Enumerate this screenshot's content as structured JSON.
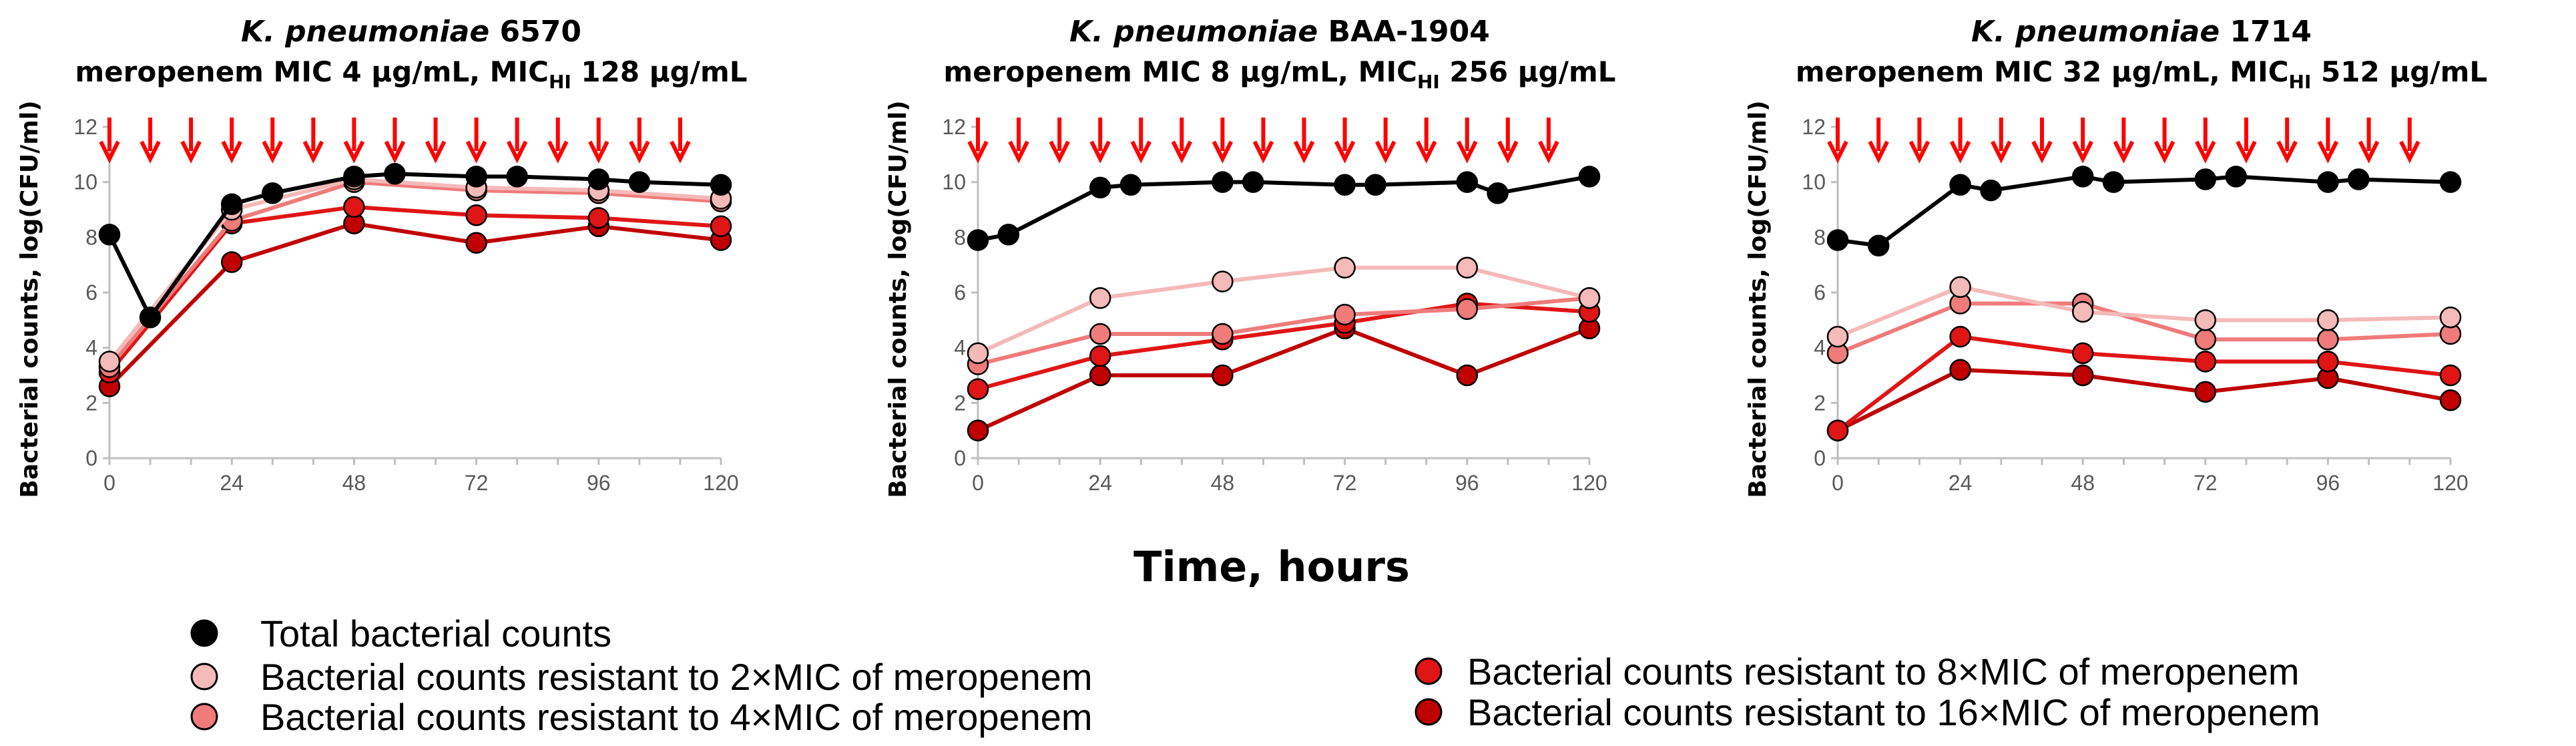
{
  "chart_data": [
    {
      "type": "line",
      "title_italic": "K. pneumoniae",
      "title_strain": "6570",
      "subtitle_prefix": "meropenem MIC 4 µg/mL, MIC",
      "subtitle_sub": "HI",
      "subtitle_suffix": "128 µg/mL",
      "ylabel": "Bacterial counts, log(CFU/ml)",
      "xlim": [
        0,
        120
      ],
      "ylim": [
        0,
        12
      ],
      "xticks": [
        0,
        24,
        48,
        72,
        96,
        120
      ],
      "yticks": [
        0,
        2,
        4,
        6,
        8,
        10,
        12
      ],
      "dose_times": [
        0,
        8,
        16,
        24,
        32,
        40,
        48,
        56,
        64,
        72,
        80,
        88,
        96,
        104,
        112
      ],
      "series": [
        {
          "name": "Total bacterial counts",
          "x": [
            0,
            8,
            24,
            32,
            48,
            56,
            72,
            80,
            96,
            104,
            120
          ],
          "y": [
            8.1,
            5.1,
            9.2,
            9.6,
            10.2,
            10.3,
            10.2,
            10.2,
            10.1,
            10.0,
            9.9
          ]
        },
        {
          "name": "2×MIC",
          "x": [
            0,
            24,
            48,
            72,
            96,
            120
          ],
          "y": [
            3.5,
            9.0,
            10.1,
            9.8,
            9.7,
            9.4
          ]
        },
        {
          "name": "4×MIC",
          "x": [
            0,
            24,
            48,
            72,
            96,
            120
          ],
          "y": [
            3.3,
            8.6,
            10.0,
            9.7,
            9.6,
            9.3
          ]
        },
        {
          "name": "8×MIC",
          "x": [
            0,
            24,
            48,
            72,
            96,
            120
          ],
          "y": [
            3.1,
            8.5,
            9.1,
            8.8,
            8.7,
            8.4
          ]
        },
        {
          "name": "16×MIC",
          "x": [
            0,
            24,
            48,
            72,
            96,
            120
          ],
          "y": [
            2.6,
            7.1,
            8.5,
            7.8,
            8.4,
            7.9
          ]
        }
      ]
    },
    {
      "type": "line",
      "title_italic": "K. pneumoniae",
      "title_strain": "BAA-1904",
      "subtitle_prefix": "meropenem MIC 8 µg/mL, MIC",
      "subtitle_sub": "HI",
      "subtitle_suffix": "256 µg/mL",
      "ylabel": "Bacterial counts, log(CFU/ml)",
      "xlim": [
        0,
        120
      ],
      "ylim": [
        0,
        12
      ],
      "xticks": [
        0,
        24,
        48,
        72,
        96,
        120
      ],
      "yticks": [
        0,
        2,
        4,
        6,
        8,
        10,
        12
      ],
      "dose_times": [
        0,
        8,
        16,
        24,
        32,
        40,
        48,
        56,
        64,
        72,
        80,
        88,
        96,
        104,
        112
      ],
      "series": [
        {
          "name": "Total bacterial counts",
          "x": [
            0,
            6,
            24,
            30,
            48,
            54,
            72,
            78,
            96,
            102,
            120
          ],
          "y": [
            7.9,
            8.1,
            9.8,
            9.9,
            10.0,
            10.0,
            9.9,
            9.9,
            10.0,
            9.6,
            10.2
          ]
        },
        {
          "name": "2×MIC",
          "x": [
            0,
            24,
            48,
            72,
            96,
            120
          ],
          "y": [
            3.8,
            5.8,
            6.4,
            6.9,
            6.9,
            5.8
          ]
        },
        {
          "name": "4×MIC",
          "x": [
            0,
            24,
            48,
            72,
            96,
            120
          ],
          "y": [
            3.4,
            4.5,
            4.5,
            5.2,
            5.4,
            5.8
          ]
        },
        {
          "name": "8×MIC",
          "x": [
            0,
            24,
            48,
            72,
            96,
            120
          ],
          "y": [
            2.5,
            3.7,
            4.3,
            4.9,
            5.6,
            5.3
          ]
        },
        {
          "name": "16×MIC",
          "x": [
            0,
            24,
            48,
            72,
            96,
            120
          ],
          "y": [
            1.0,
            3.0,
            3.0,
            4.7,
            3.0,
            4.7
          ]
        }
      ]
    },
    {
      "type": "line",
      "title_italic": "K. pneumoniae",
      "title_strain": "1714",
      "subtitle_prefix": "meropenem MIC 32 µg/mL, MIC",
      "subtitle_sub": "HI",
      "subtitle_suffix": "512 µg/mL",
      "ylabel": "Bacterial counts, log(CFU/ml)",
      "xlim": [
        0,
        120
      ],
      "ylim": [
        0,
        12
      ],
      "xticks": [
        0,
        24,
        48,
        72,
        96,
        120
      ],
      "yticks": [
        0,
        2,
        4,
        6,
        8,
        10,
        12
      ],
      "dose_times": [
        0,
        8,
        16,
        24,
        32,
        40,
        48,
        56,
        64,
        72,
        80,
        88,
        96,
        104,
        112
      ],
      "series": [
        {
          "name": "Total bacterial counts",
          "x": [
            0,
            8,
            24,
            30,
            48,
            54,
            72,
            78,
            96,
            102,
            120
          ],
          "y": [
            7.9,
            7.7,
            9.9,
            9.7,
            10.2,
            10.0,
            10.1,
            10.2,
            10.0,
            10.1,
            10.0
          ]
        },
        {
          "name": "2×MIC",
          "x": [
            0,
            24,
            48,
            72,
            96,
            120
          ],
          "y": [
            4.4,
            6.2,
            5.3,
            5.0,
            5.0,
            5.1
          ]
        },
        {
          "name": "4×MIC",
          "x": [
            0,
            24,
            48,
            72,
            96,
            120
          ],
          "y": [
            3.8,
            5.6,
            5.6,
            4.3,
            4.3,
            4.5
          ]
        },
        {
          "name": "8×MIC",
          "x": [
            0,
            24,
            48,
            72,
            96,
            120
          ],
          "y": [
            1.0,
            4.4,
            3.8,
            3.5,
            3.5,
            3.0
          ]
        },
        {
          "name": "16×MIC",
          "x": [
            0,
            24,
            48,
            72,
            96,
            120
          ],
          "y": [
            1.0,
            3.2,
            3.0,
            2.4,
            2.9,
            2.1
          ]
        }
      ]
    }
  ],
  "shared": {
    "xlabel": "Time, hours",
    "legend": [
      {
        "label": "Total bacterial counts",
        "color": "#000000"
      },
      {
        "label": "Bacterial counts resistant to 2×MIC of meropenem",
        "color": "#f4b9b9"
      },
      {
        "label": "Bacterial counts resistant to 4×MIC of meropenem",
        "color": "#ef7b7b"
      },
      {
        "label": "Bacterial counts resistant to 8×MIC of meropenem",
        "color": "#e01515"
      },
      {
        "label": "Bacterial counts resistant to 16×MIC of meropenem",
        "color": "#c00000"
      }
    ],
    "colors": {
      "total": "#000000",
      "mic2": "#f4b9b9",
      "mic4": "#ef7b7b",
      "mic8": "#e01515",
      "mic16": "#c00000",
      "arrow": "#ff0000",
      "axis": "#bfbfbf"
    }
  }
}
